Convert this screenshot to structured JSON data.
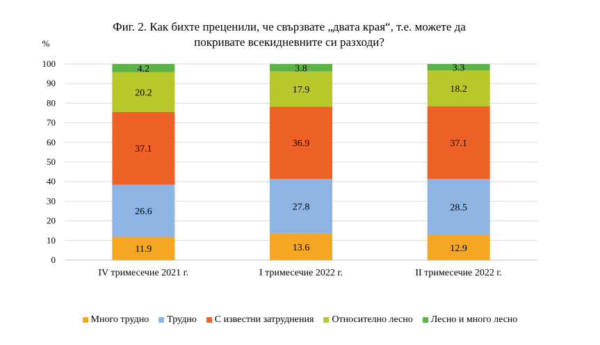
{
  "chart_data": {
    "type": "bar",
    "stacked": true,
    "title_lines": [
      "Фиг. 2. Как бихте преценили,  че свързвате „двата края“, т.е. можете да",
      "покривате всекидневните си разходи?"
    ],
    "ylabel": "%",
    "ylim": [
      0,
      100
    ],
    "yticks": [
      0,
      10,
      20,
      30,
      40,
      50,
      60,
      70,
      80,
      90,
      100
    ],
    "grid": true,
    "legend_position": "bottom",
    "categories": [
      "IV тримесечие 2021 г.",
      "I тримесечие 2022 г.",
      "II тримесечие 2022 г."
    ],
    "series": [
      {
        "name": "Много трудно",
        "color": "#F5A623",
        "values": [
          11.9,
          13.6,
          12.9
        ]
      },
      {
        "name": "Трудно",
        "color": "#8EB4E3",
        "values": [
          26.6,
          27.8,
          28.5
        ]
      },
      {
        "name": "С известни затруднения",
        "color": "#EE6227",
        "values": [
          37.1,
          36.9,
          37.1
        ]
      },
      {
        "name": "Относително лесно",
        "color": "#B8C82A",
        "values": [
          20.2,
          17.9,
          18.2
        ]
      },
      {
        "name": "Лесно и много лесно",
        "color": "#5DB348",
        "values": [
          4.2,
          3.8,
          3.3
        ]
      }
    ]
  }
}
